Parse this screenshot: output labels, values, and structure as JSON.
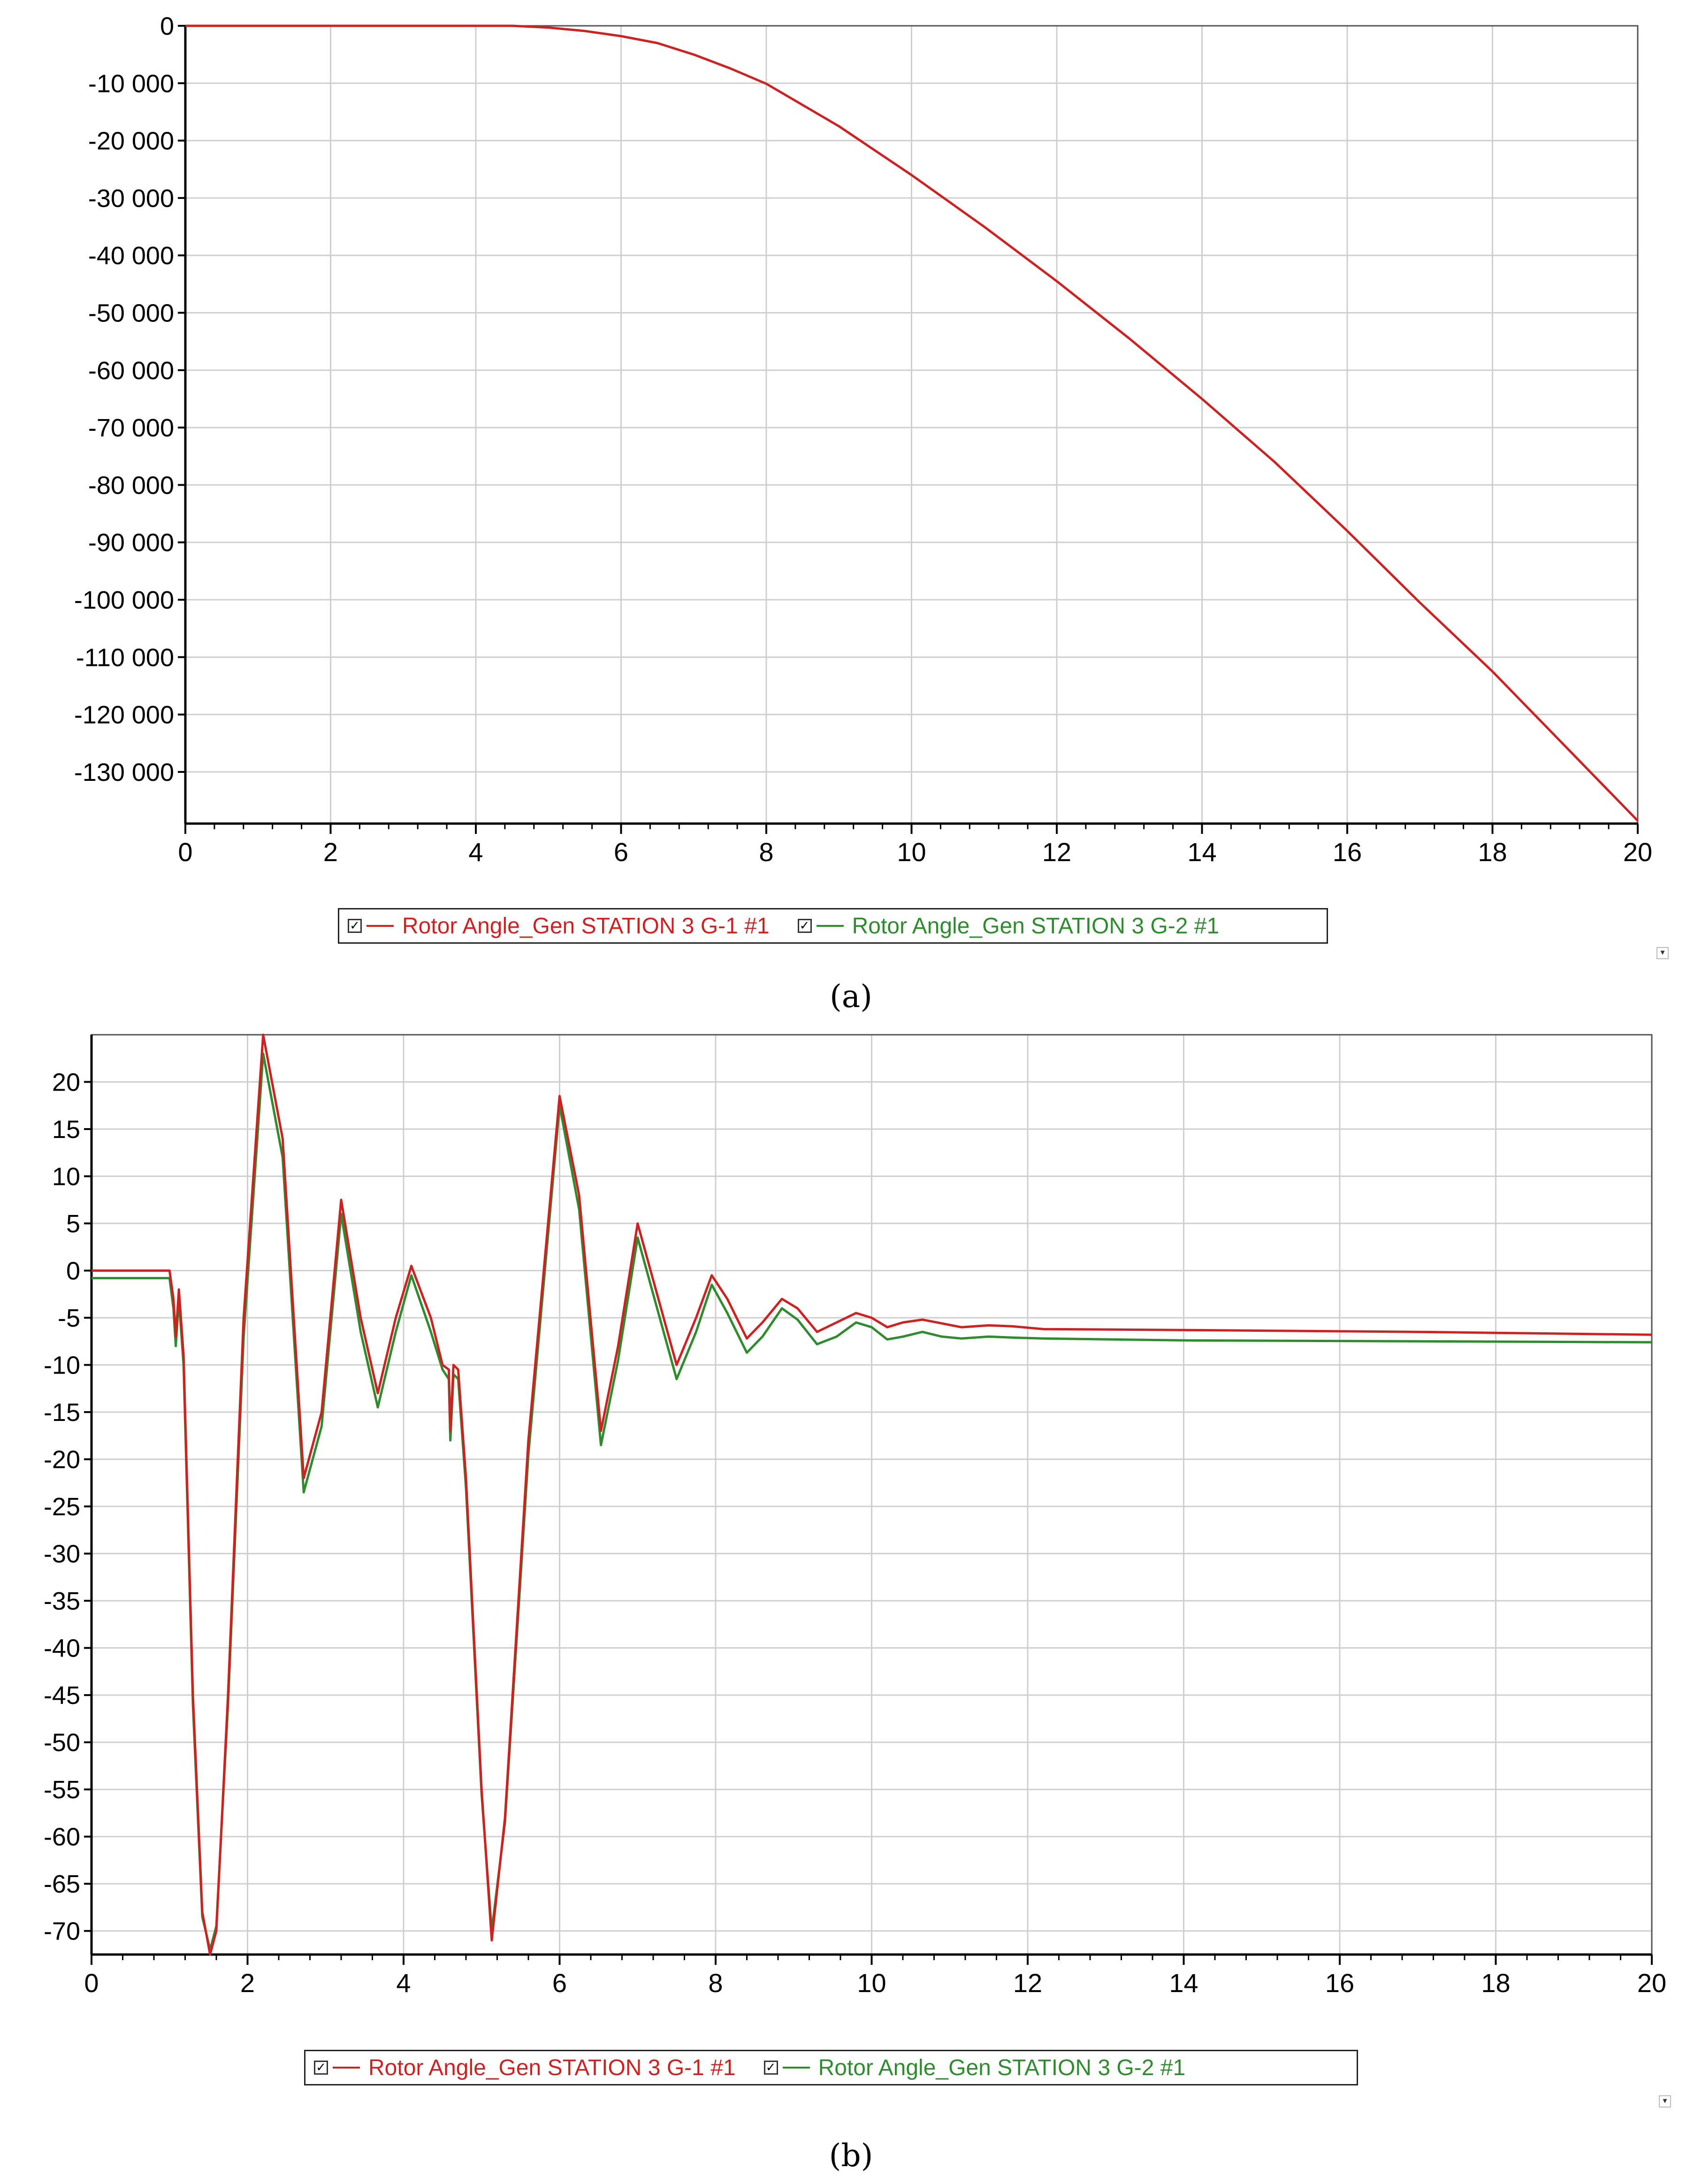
{
  "chart_data": [
    {
      "panel": "a",
      "type": "line",
      "caption": "(a)",
      "xlim": [
        0,
        20
      ],
      "ylim": [
        -139000,
        0
      ],
      "x_ticks": [
        0,
        2,
        4,
        6,
        8,
        10,
        12,
        14,
        16,
        18,
        20
      ],
      "y_ticks": [
        0,
        -10000,
        -20000,
        -30000,
        -40000,
        -50000,
        -60000,
        -70000,
        -80000,
        -90000,
        -100000,
        -110000,
        -120000,
        -130000
      ],
      "y_tick_labels": [
        "0",
        "-10 000",
        "-20 000",
        "-30 000",
        "-40 000",
        "-50 000",
        "-60 000",
        "-70 000",
        "-80 000",
        "-90 000",
        "-100 000",
        "-110 000",
        "-120 000",
        "-130 000"
      ],
      "grid": true,
      "legend_position": "bottom-center",
      "series": [
        {
          "name": "Rotor Angle_Gen STATION 3 G-1 #1",
          "color": "#cc2222",
          "x": [
            0,
            4.5,
            5,
            5.5,
            6,
            6.5,
            7,
            7.5,
            8,
            9,
            10,
            11,
            12,
            13,
            14,
            15,
            16,
            17,
            18,
            19,
            20
          ],
          "y": [
            0,
            0,
            -300,
            -900,
            -1800,
            -3000,
            -5000,
            -7400,
            -10100,
            -17500,
            -26000,
            -35000,
            -44500,
            -54500,
            -65000,
            -76000,
            -88000,
            -100500,
            -112500,
            -125500,
            -138500
          ]
        },
        {
          "name": "Rotor Angle_Gen STATION 3 G-2 #1",
          "color": "#2e8b2e",
          "x": [],
          "y": []
        }
      ]
    },
    {
      "panel": "b",
      "type": "line",
      "caption": "(b)",
      "xlim": [
        0,
        20
      ],
      "ylim": [
        -72.5,
        25
      ],
      "x_ticks": [
        0,
        2,
        4,
        6,
        8,
        10,
        12,
        14,
        16,
        18,
        20
      ],
      "y_ticks": [
        20,
        15,
        10,
        5,
        0,
        -5,
        -10,
        -15,
        -20,
        -25,
        -30,
        -35,
        -40,
        -45,
        -50,
        -55,
        -60,
        -65,
        -70
      ],
      "y_tick_labels": [
        "20",
        "15",
        "10",
        "5",
        "0",
        "-5",
        "-10",
        "-15",
        "-20",
        "-25",
        "-30",
        "-35",
        "-40",
        "-45",
        "-50",
        "-55",
        "-60",
        "-65",
        "-70"
      ],
      "grid": true,
      "legend_position": "bottom-center",
      "series": [
        {
          "name": "Rotor Angle_Gen STATION 3 G-1 #1",
          "color": "#cc2222",
          "x": [
            0,
            1,
            1.05,
            1.08,
            1.12,
            1.18,
            1.3,
            1.42,
            1.52,
            1.6,
            1.75,
            1.95,
            2.2,
            2.45,
            2.72,
            2.95,
            3.2,
            3.45,
            3.67,
            3.9,
            4.1,
            4.35,
            4.5,
            4.58,
            4.6,
            4.64,
            4.7,
            4.8,
            5,
            5.13,
            5.3,
            5.6,
            6,
            6.25,
            6.53,
            6.75,
            7,
            7.2,
            7.5,
            7.75,
            7.95,
            8.15,
            8.4,
            8.6,
            8.85,
            9.05,
            9.3,
            9.55,
            9.8,
            10,
            10.2,
            10.4,
            10.65,
            10.9,
            11.15,
            11.5,
            11.8,
            12.2,
            14,
            17,
            20
          ],
          "y": [
            0,
            0,
            -3,
            -7,
            -2,
            -9,
            -45,
            -68,
            -72.5,
            -70,
            -45,
            -5,
            25,
            14,
            -22,
            -15,
            7.5,
            -5,
            -13,
            -5,
            0.5,
            -5,
            -10,
            -10.5,
            -17,
            -10,
            -10.5,
            -22,
            -55,
            -71,
            -58,
            -18,
            18.5,
            8,
            -17,
            -8,
            5,
            -1,
            -10,
            -5,
            -0.5,
            -3,
            -7.2,
            -5.5,
            -3,
            -4,
            -6.5,
            -5.5,
            -4.5,
            -5,
            -6,
            -5.5,
            -5.2,
            -5.6,
            -6,
            -5.8,
            -5.9,
            -6.2,
            -6.3,
            -6.5,
            -6.8
          ]
        },
        {
          "name": "Rotor Angle_Gen STATION 3 G-2 #1",
          "color": "#2e8b2e",
          "x": [
            0,
            1,
            1.05,
            1.08,
            1.12,
            1.18,
            1.3,
            1.42,
            1.52,
            1.6,
            1.75,
            1.95,
            2.2,
            2.45,
            2.72,
            2.95,
            3.2,
            3.45,
            3.67,
            3.9,
            4.1,
            4.35,
            4.5,
            4.58,
            4.6,
            4.64,
            4.7,
            4.8,
            5,
            5.13,
            5.3,
            5.6,
            6,
            6.25,
            6.53,
            6.75,
            7,
            7.2,
            7.5,
            7.75,
            7.95,
            8.15,
            8.4,
            8.6,
            8.85,
            9.05,
            9.3,
            9.55,
            9.8,
            10,
            10.2,
            10.4,
            10.65,
            10.9,
            11.15,
            11.5,
            11.8,
            12.2,
            14,
            17,
            20
          ],
          "y": [
            -0.8,
            -0.8,
            -4,
            -8,
            -3,
            -10,
            -46,
            -68.5,
            -72,
            -69.5,
            -46,
            -7,
            23,
            12,
            -23.5,
            -16.5,
            6,
            -6.5,
            -14.5,
            -6.5,
            -0.5,
            -6.5,
            -10.5,
            -11.5,
            -18,
            -11,
            -11.5,
            -23,
            -55.5,
            -70,
            -58.5,
            -19.5,
            17.5,
            6.5,
            -18.5,
            -9.5,
            3.5,
            -2.5,
            -11.5,
            -6.5,
            -1.5,
            -4.5,
            -8.7,
            -7,
            -4,
            -5.2,
            -7.8,
            -7,
            -5.5,
            -6,
            -7.3,
            -7,
            -6.5,
            -7,
            -7.2,
            -7,
            -7.1,
            -7.2,
            -7.4,
            -7.5,
            -7.6
          ]
        }
      ]
    }
  ]
}
